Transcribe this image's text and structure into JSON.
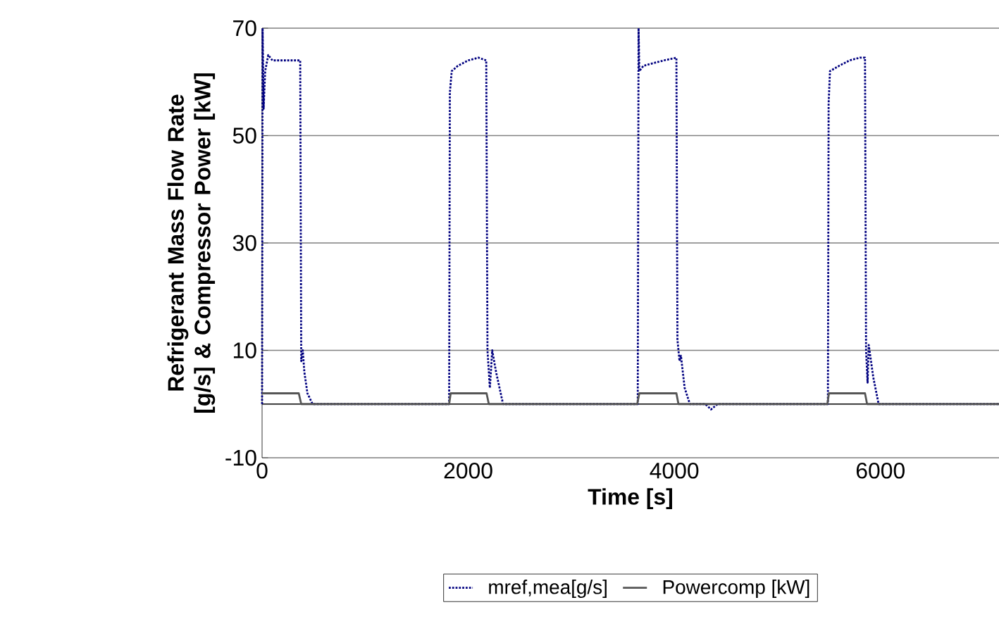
{
  "chart_data": {
    "type": "line",
    "xlabel": "Time [s]",
    "ylabel": "Refrigerant Mass Flow Rate [g/s] & Compressor Power [kW]",
    "xlim": [
      0,
      7150
    ],
    "ylim": [
      -10,
      70
    ],
    "xticks": [
      0,
      2000,
      4000,
      6000
    ],
    "yticks": [
      -10,
      10,
      30,
      50,
      70
    ],
    "grid": "y",
    "legend": "bottom",
    "ref_lines": [
      {
        "axis": "y",
        "value": 0,
        "color": "#000000"
      }
    ],
    "series": [
      {
        "name": "mref,mea[g/s]",
        "color": "#000080",
        "line_style": "dotted",
        "x": [
          0,
          5,
          15,
          30,
          60,
          100,
          200,
          370,
          380,
          395,
          410,
          440,
          490,
          1000,
          1815,
          1822,
          1840,
          1900,
          2000,
          2100,
          2175,
          2187,
          2210,
          2233,
          2270,
          2338,
          3000,
          3645,
          3653,
          3660,
          3700,
          3800,
          3900,
          4020,
          4030,
          4050,
          4064,
          4100,
          4151,
          4300,
          4356,
          4420,
          5000,
          5490,
          5497,
          5510,
          5600,
          5700,
          5800,
          5850,
          5860,
          5875,
          5886,
          5930,
          5982,
          7150
        ],
        "values": [
          0,
          70,
          55,
          62,
          65,
          64,
          64,
          64,
          8,
          10,
          6,
          2,
          0,
          0,
          0,
          58,
          62,
          63,
          64,
          64.5,
          64,
          10,
          3,
          10,
          6,
          0,
          0,
          0,
          70,
          62,
          63,
          63.5,
          64,
          64.5,
          12,
          8,
          9,
          3,
          0,
          0,
          -1,
          0,
          0,
          0,
          56,
          62,
          63,
          64,
          64.5,
          64.5,
          10,
          4,
          11,
          5,
          0,
          0
        ]
      },
      {
        "name": "Powercomp [kW]",
        "color": "#555555",
        "line_style": "solid",
        "x": [
          0,
          356,
          380,
          1815,
          1830,
          2178,
          2200,
          3640,
          3660,
          4020,
          4040,
          5485,
          5500,
          5850,
          5870,
          7150
        ],
        "values": [
          2,
          2,
          0,
          0,
          2,
          2,
          0,
          0,
          2,
          2,
          0,
          0,
          2,
          2,
          0,
          0
        ]
      }
    ]
  }
}
